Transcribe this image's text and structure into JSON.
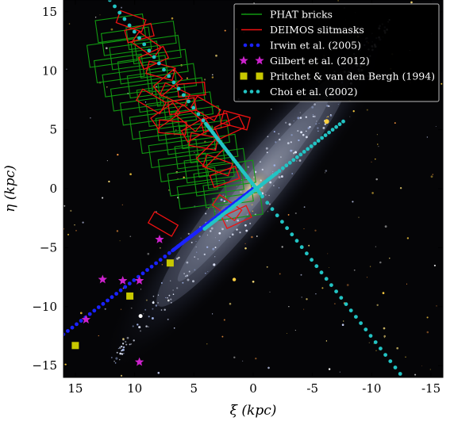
{
  "chart_data": {
    "type": "scatter",
    "title": "",
    "xlabel": "ξ (kpc)",
    "ylabel": "η (kpc)",
    "xlim": [
      16,
      -16
    ],
    "ylim": [
      -16,
      16
    ],
    "x_ticks": [
      15,
      10,
      5,
      0,
      -5,
      -10,
      -15
    ],
    "x_tick_labels": [
      "15",
      "10",
      "5",
      "0",
      "-5",
      "-10",
      "-15"
    ],
    "y_ticks": [
      15,
      10,
      5,
      0,
      -5,
      -10,
      -15
    ],
    "y_tick_labels": [
      "15",
      "10",
      "5",
      "0",
      "−5",
      "−10",
      "−15"
    ],
    "grid": false,
    "legend_position": "top-right",
    "background": "M31 galaxy image (dark sky)",
    "legend": [
      {
        "label": "PHAT bricks",
        "color": "#119911",
        "marker": "line"
      },
      {
        "label": "DEIMOS slitmasks",
        "color": "#ee1111",
        "marker": "line"
      },
      {
        "label": "Irwin et al. (2005)",
        "color": "#1a22ff",
        "marker": "dot"
      },
      {
        "label": "Gilbert et al. (2012)",
        "color": "#cc22cc",
        "marker": "star"
      },
      {
        "label": "Pritchet & van den Bergh (1994)",
        "color": "#c8c800",
        "marker": "square"
      },
      {
        "label": "Choi et al. (2002)",
        "color": "#22c4c4",
        "marker": "dot"
      }
    ],
    "series": [
      {
        "name": "Gilbert et al. (2012)",
        "marker": "star",
        "color": "#cc22cc",
        "x": [
          7.9,
          12.7,
          11.0,
          9.6,
          14.1,
          9.6
        ],
        "y": [
          -4.3,
          -7.7,
          -7.8,
          -7.8,
          -11.1,
          -14.7
        ]
      },
      {
        "name": "Pritchet & van den Bergh (1994)",
        "marker": "square",
        "color": "#c8c800",
        "x": [
          7.0,
          10.4,
          15.0
        ],
        "y": [
          -6.3,
          -9.1,
          -13.3
        ]
      },
      {
        "name": "Irwin et al. (2005)",
        "marker": "dot",
        "color": "#1a22ff",
        "x_range": [
          0.0,
          17.5
        ],
        "y_range": [
          0.0,
          -13.5
        ],
        "dense_segment_x": [
          0.0,
          6.8
        ],
        "count": 48
      },
      {
        "name": "Choi et al. (2002) major axis",
        "marker": "dot",
        "color": "#22c4c4",
        "x_range": [
          12.1,
          -12.4
        ],
        "y_range": [
          16.0,
          -15.7
        ],
        "dense_segment_x": [
          4.0,
          -0.6
        ],
        "count": 60
      },
      {
        "name": "Choi et al. (2002) minor axis",
        "marker": "dot",
        "color": "#22c4c4",
        "x_range": [
          4.1,
          -7.6
        ],
        "y_range": [
          -3.4,
          5.7
        ],
        "dense_segment_x": [
          4.1,
          -2.0
        ],
        "count": 40
      }
    ]
  }
}
